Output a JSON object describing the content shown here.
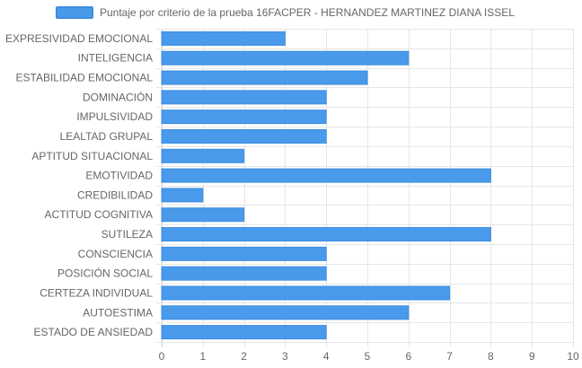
{
  "chart_data": {
    "type": "bar",
    "orientation": "horizontal",
    "title": "",
    "xlabel": "",
    "ylabel": "",
    "categories": [
      "EXPRESIVIDAD EMOCIONAL",
      "INTELIGENCIA",
      "ESTABILIDAD EMOCIONAL",
      "DOMINACIÓN",
      "IMPULSIVIDAD",
      "LEALTAD GRUPAL",
      "APTITUD SITUACIONAL",
      "EMOTIVIDAD",
      "CREDIBILIDAD",
      "ACTITUD COGNITIVA",
      "SUTILEZA",
      "CONSCIENCIA",
      "POSICIÓN SOCIAL",
      "CERTEZA INDIVIDUAL",
      "AUTOESTIMA",
      "ESTADO DE ANSIEDAD"
    ],
    "series": [
      {
        "name": "Puntaje por criterio de la prueba 16FACPER - HERNANDEZ MARTINEZ DIANA ISSEL",
        "values": [
          3,
          6,
          5,
          4,
          4,
          4,
          2,
          8,
          1,
          2,
          8,
          4,
          4,
          7,
          6,
          4
        ]
      }
    ],
    "xlim": [
      0,
      10
    ],
    "x_ticks": [
      "0",
      "1",
      "2",
      "3",
      "4",
      "5",
      "6",
      "7",
      "8",
      "9",
      "10"
    ],
    "grid": true,
    "legend_position": "top",
    "colors": {
      "bar_fill": "#4a9aeb",
      "bar_stroke": "#3d8de0",
      "grid": "#e6e6e6",
      "text": "#666666"
    }
  }
}
